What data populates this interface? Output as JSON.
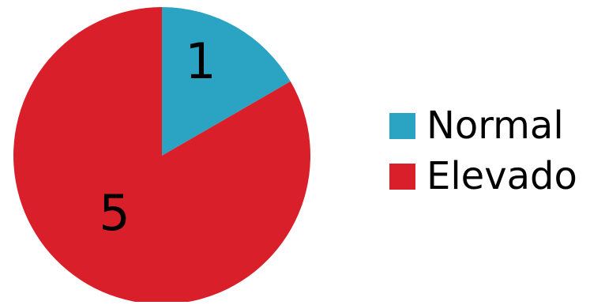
{
  "chart_data": {
    "type": "pie",
    "series": [
      {
        "name": "Normal",
        "value": 1,
        "color": "#2BA3C3"
      },
      {
        "name": "Elevado",
        "value": 5,
        "color": "#D91F2A"
      }
    ],
    "start_angle_deg": 0,
    "direction": "clockwise",
    "data_labels": [
      "1",
      "5"
    ],
    "legend_placement": "right"
  }
}
